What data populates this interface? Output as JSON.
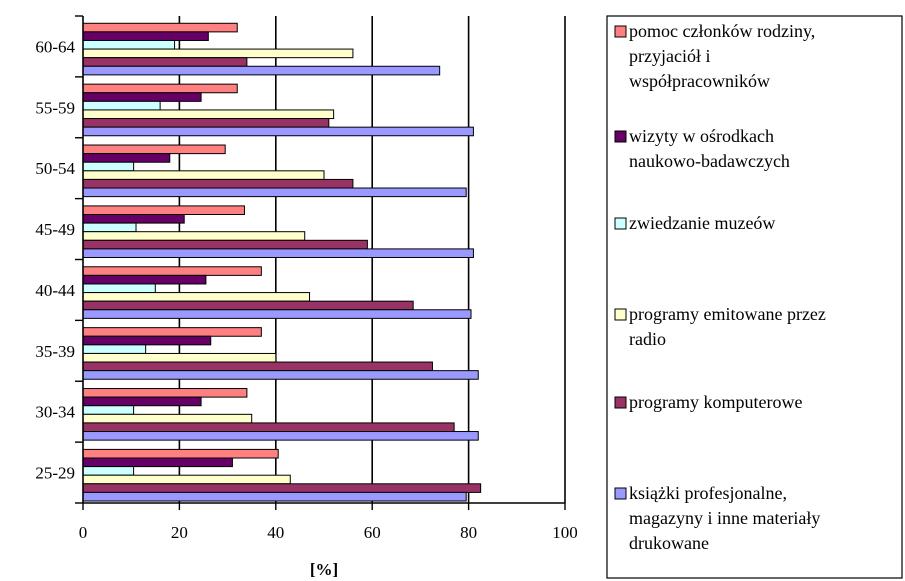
{
  "chart_data": {
    "type": "bar",
    "orientation": "horizontal",
    "categories": [
      "25-29",
      "30-34",
      "35-39",
      "40-44",
      "45-49",
      "50-54",
      "55-59",
      "60-64"
    ],
    "series": [
      {
        "name": "pomoc członków rodziny, przyjaciół i współpracowników",
        "color": "#ff8080",
        "values": [
          40.5,
          34,
          37,
          37,
          33.5,
          29.5,
          32,
          32
        ]
      },
      {
        "name": "wizyty w ośrodkach naukowo-badawczych",
        "color": "#660066",
        "values": [
          31,
          24.5,
          26.5,
          25.5,
          21,
          18,
          24.5,
          26
        ]
      },
      {
        "name": "zwiedzanie muzeów",
        "color": "#ccffff",
        "values": [
          10.5,
          10.5,
          13,
          15,
          11,
          10.5,
          16,
          19
        ]
      },
      {
        "name": "programy emitowane przez radio",
        "color": "#ffffcc",
        "values": [
          43,
          35,
          40,
          47,
          46,
          50,
          52,
          56
        ]
      },
      {
        "name": "programy komputerowe",
        "color": "#993366",
        "values": [
          82.5,
          77,
          72.5,
          68.5,
          59,
          56,
          51,
          34
        ]
      },
      {
        "name": "książki profesjonalne, magazyny i inne materiały drukowane",
        "color": "#9999ff",
        "values": [
          79.5,
          82,
          82,
          80.5,
          81,
          79.5,
          81,
          74
        ]
      }
    ],
    "xlabel": "[%]",
    "ylabel": "",
    "xlim": [
      0,
      100
    ],
    "x_ticks": [
      "0",
      "20",
      "40",
      "60",
      "80",
      "100"
    ],
    "grid": true,
    "legend_placement": "right",
    "legend_lines": [
      [
        "pomoc członków rodziny,",
        "przyjaciół i",
        "współpracowników"
      ],
      [
        "wizyty w ośrodkach",
        "naukowo-badawczych"
      ],
      [
        "zwiedzanie muzeów"
      ],
      [
        "programy emitowane przez",
        "radio"
      ],
      [
        "programy komputerowe"
      ],
      [
        "książki profesjonalne,",
        "magazyny i inne materiały",
        "drukowane"
      ]
    ]
  }
}
